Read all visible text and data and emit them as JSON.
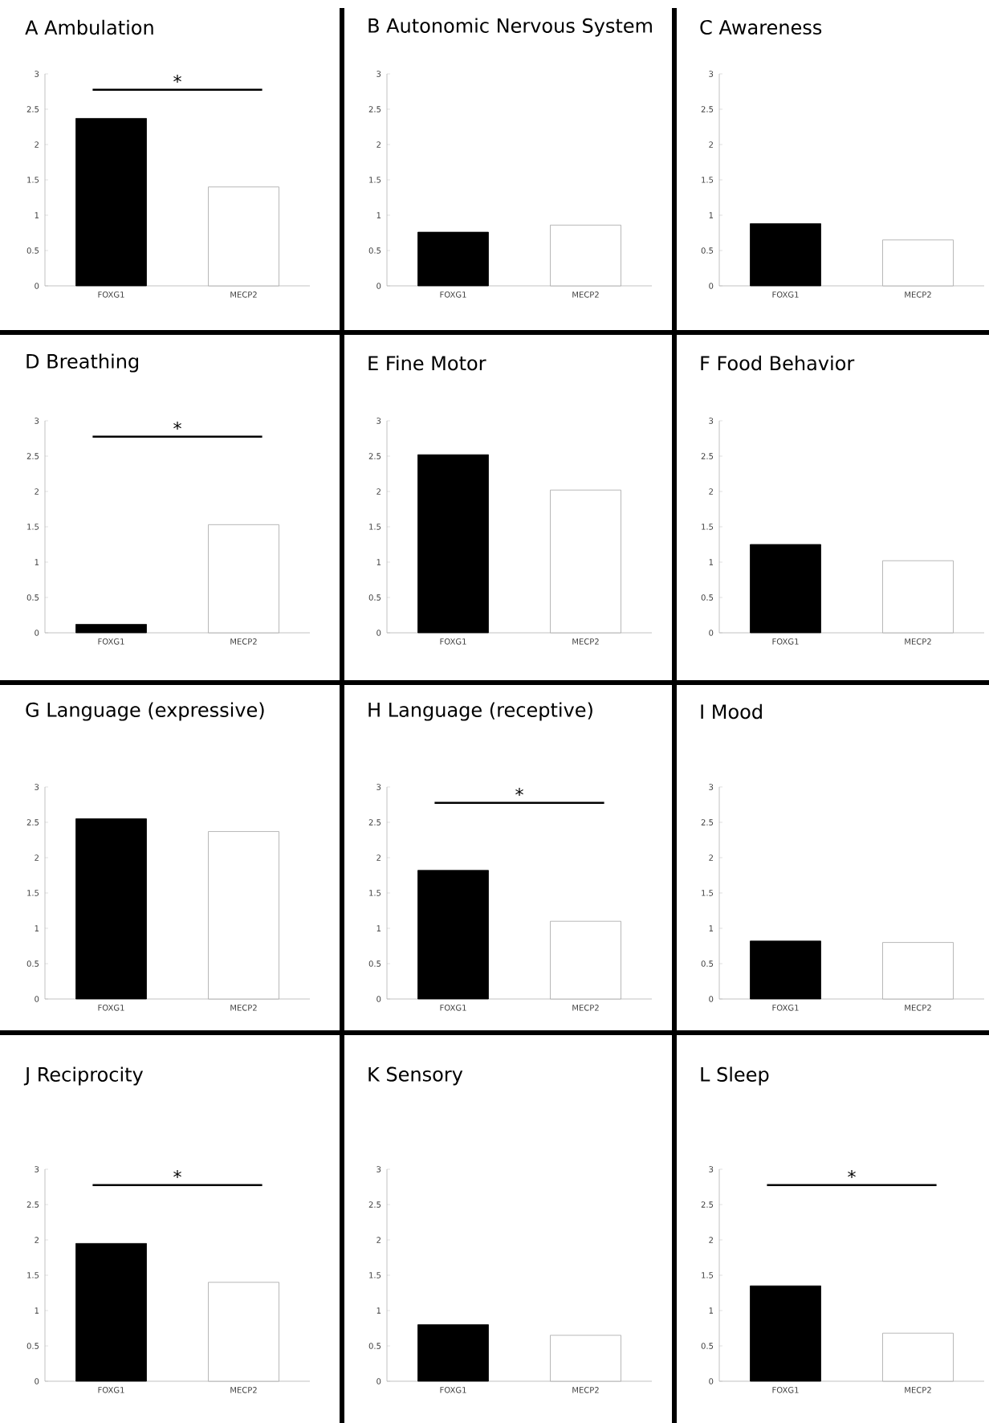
{
  "chart_data": [
    {
      "type": "bar",
      "title": "A Ambulation",
      "categories": [
        "FOXG1",
        "MECP2"
      ],
      "values": [
        2.37,
        1.4
      ],
      "colors": [
        "#000000",
        "#ffffff"
      ],
      "ylim": [
        0,
        3
      ],
      "yticks": [
        0,
        0.5,
        1,
        1.5,
        2,
        2.5,
        3
      ],
      "annotations": [
        "*"
      ]
    },
    {
      "type": "bar",
      "title": "B Autonomic Nervous System",
      "categories": [
        "FOXG1",
        "MECP2"
      ],
      "values": [
        0.76,
        0.86
      ],
      "colors": [
        "#000000",
        "#ffffff"
      ],
      "ylim": [
        0,
        3
      ],
      "yticks": [
        0,
        0.5,
        1,
        1.5,
        2,
        2.5,
        3
      ]
    },
    {
      "type": "bar",
      "title": "C Awareness",
      "categories": [
        "FOXG1",
        "MECP2"
      ],
      "values": [
        0.88,
        0.65
      ],
      "colors": [
        "#000000",
        "#ffffff"
      ],
      "ylim": [
        0,
        3
      ],
      "yticks": [
        0,
        0.5,
        1,
        1.5,
        2,
        2.5,
        3
      ]
    },
    {
      "type": "bar",
      "title": "D Breathing",
      "categories": [
        "FOXG1",
        "MECP2"
      ],
      "values": [
        0.12,
        1.53
      ],
      "colors": [
        "#000000",
        "#ffffff"
      ],
      "ylim": [
        0,
        3
      ],
      "yticks": [
        0,
        0.5,
        1,
        1.5,
        2,
        2.5,
        3
      ],
      "annotations": [
        "*"
      ]
    },
    {
      "type": "bar",
      "title": "E Fine Motor",
      "categories": [
        "FOXG1",
        "MECP2"
      ],
      "values": [
        2.52,
        2.02
      ],
      "colors": [
        "#000000",
        "#ffffff"
      ],
      "ylim": [
        0,
        3
      ],
      "yticks": [
        0,
        0.5,
        1,
        1.5,
        2,
        2.5,
        3
      ]
    },
    {
      "type": "bar",
      "title": "F Food Behavior",
      "categories": [
        "FOXG1",
        "MECP2"
      ],
      "values": [
        1.25,
        1.02
      ],
      "colors": [
        "#000000",
        "#ffffff"
      ],
      "ylim": [
        0,
        3
      ],
      "yticks": [
        0,
        0.5,
        1,
        1.5,
        2,
        2.5,
        3
      ]
    },
    {
      "type": "bar",
      "title": "G Language (expressive)",
      "categories": [
        "FOXG1",
        "MECP2"
      ],
      "values": [
        2.55,
        2.37
      ],
      "colors": [
        "#000000",
        "#ffffff"
      ],
      "ylim": [
        0,
        3
      ],
      "yticks": [
        0,
        0.5,
        1,
        1.5,
        2,
        2.5,
        3
      ]
    },
    {
      "type": "bar",
      "title": "H Language (receptive)",
      "categories": [
        "FOXG1",
        "MECP2"
      ],
      "values": [
        1.82,
        1.1
      ],
      "colors": [
        "#000000",
        "#ffffff"
      ],
      "ylim": [
        0,
        3
      ],
      "yticks": [
        0,
        0.5,
        1,
        1.5,
        2,
        2.5,
        3
      ],
      "annotations": [
        "*"
      ]
    },
    {
      "type": "bar",
      "title": "I Mood",
      "categories": [
        "FOXG1",
        "MECP2"
      ],
      "values": [
        0.82,
        0.8
      ],
      "colors": [
        "#000000",
        "#ffffff"
      ],
      "ylim": [
        0,
        3
      ],
      "yticks": [
        0,
        0.5,
        1,
        1.5,
        2,
        2.5,
        3
      ]
    },
    {
      "type": "bar",
      "title": "J Reciprocity",
      "categories": [
        "FOXG1",
        "MECP2"
      ],
      "values": [
        1.95,
        1.4
      ],
      "colors": [
        "#000000",
        "#ffffff"
      ],
      "ylim": [
        0,
        3
      ],
      "yticks": [
        0,
        0.5,
        1,
        1.5,
        2,
        2.5,
        3
      ],
      "annotations": [
        "*"
      ]
    },
    {
      "type": "bar",
      "title": "K Sensory",
      "categories": [
        "FOXG1",
        "MECP2"
      ],
      "values": [
        0.8,
        0.65
      ],
      "colors": [
        "#000000",
        "#ffffff"
      ],
      "ylim": [
        0,
        3
      ],
      "yticks": [
        0,
        0.5,
        1,
        1.5,
        2,
        2.5,
        3
      ]
    },
    {
      "type": "bar",
      "title": "L Sleep",
      "categories": [
        "FOXG1",
        "MECP2"
      ],
      "values": [
        1.35,
        0.68
      ],
      "colors": [
        "#000000",
        "#ffffff"
      ],
      "ylim": [
        0,
        3
      ],
      "yticks": [
        0,
        0.5,
        1,
        1.5,
        2,
        2.5,
        3
      ],
      "annotations": [
        "*"
      ]
    }
  ]
}
